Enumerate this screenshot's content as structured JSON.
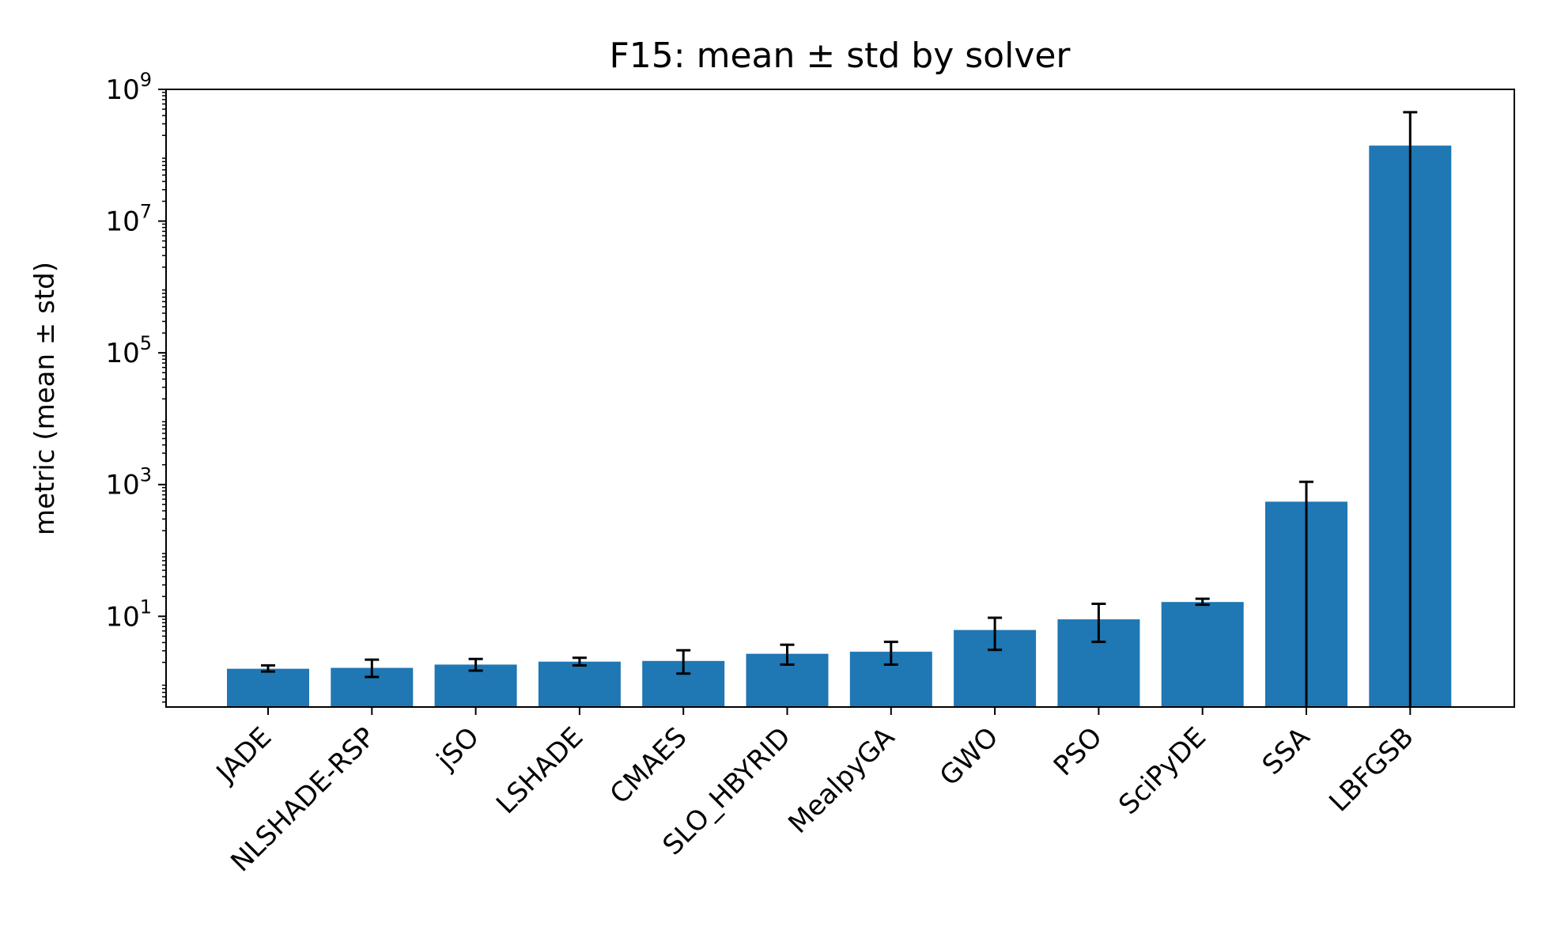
{
  "chart_data": {
    "type": "bar",
    "title": "F15: mean ± std by solver",
    "xlabel": "",
    "ylabel": "metric (mean ± std)",
    "yscale": "log",
    "ylim": [
      0.42,
      1000000000
    ],
    "yticks": [
      {
        "value": 10,
        "base": "10",
        "exp": "1"
      },
      {
        "value": 1000,
        "base": "10",
        "exp": "3"
      },
      {
        "value": 100000,
        "base": "10",
        "exp": "5"
      },
      {
        "value": 10000000,
        "base": "10",
        "exp": "7"
      },
      {
        "value": 1000000000,
        "base": "10",
        "exp": "9"
      }
    ],
    "grid": false,
    "legend": "none",
    "bar_color": "#1f77b4",
    "error_color": "#000000",
    "categories": [
      "JADE",
      "NLSHADE-RSP",
      "jSO",
      "LSHADE",
      "CMAES",
      "SLO_HBYRID",
      "MealpyGA",
      "GWO",
      "PSO",
      "SciPyDE",
      "SSA",
      "LBFGSB"
    ],
    "values": [
      1.6,
      1.65,
      1.85,
      2.05,
      2.1,
      2.7,
      2.9,
      6.2,
      9.0,
      16.5,
      550,
      140000000
    ],
    "err_low": [
      1.45,
      1.2,
      1.5,
      1.8,
      1.35,
      1.85,
      1.85,
      3.1,
      4.1,
      15.0,
      0.3,
      0.3
    ],
    "err_high": [
      1.8,
      2.2,
      2.25,
      2.35,
      3.05,
      3.7,
      4.1,
      9.5,
      15.5,
      18.5,
      1100,
      450000000
    ]
  }
}
